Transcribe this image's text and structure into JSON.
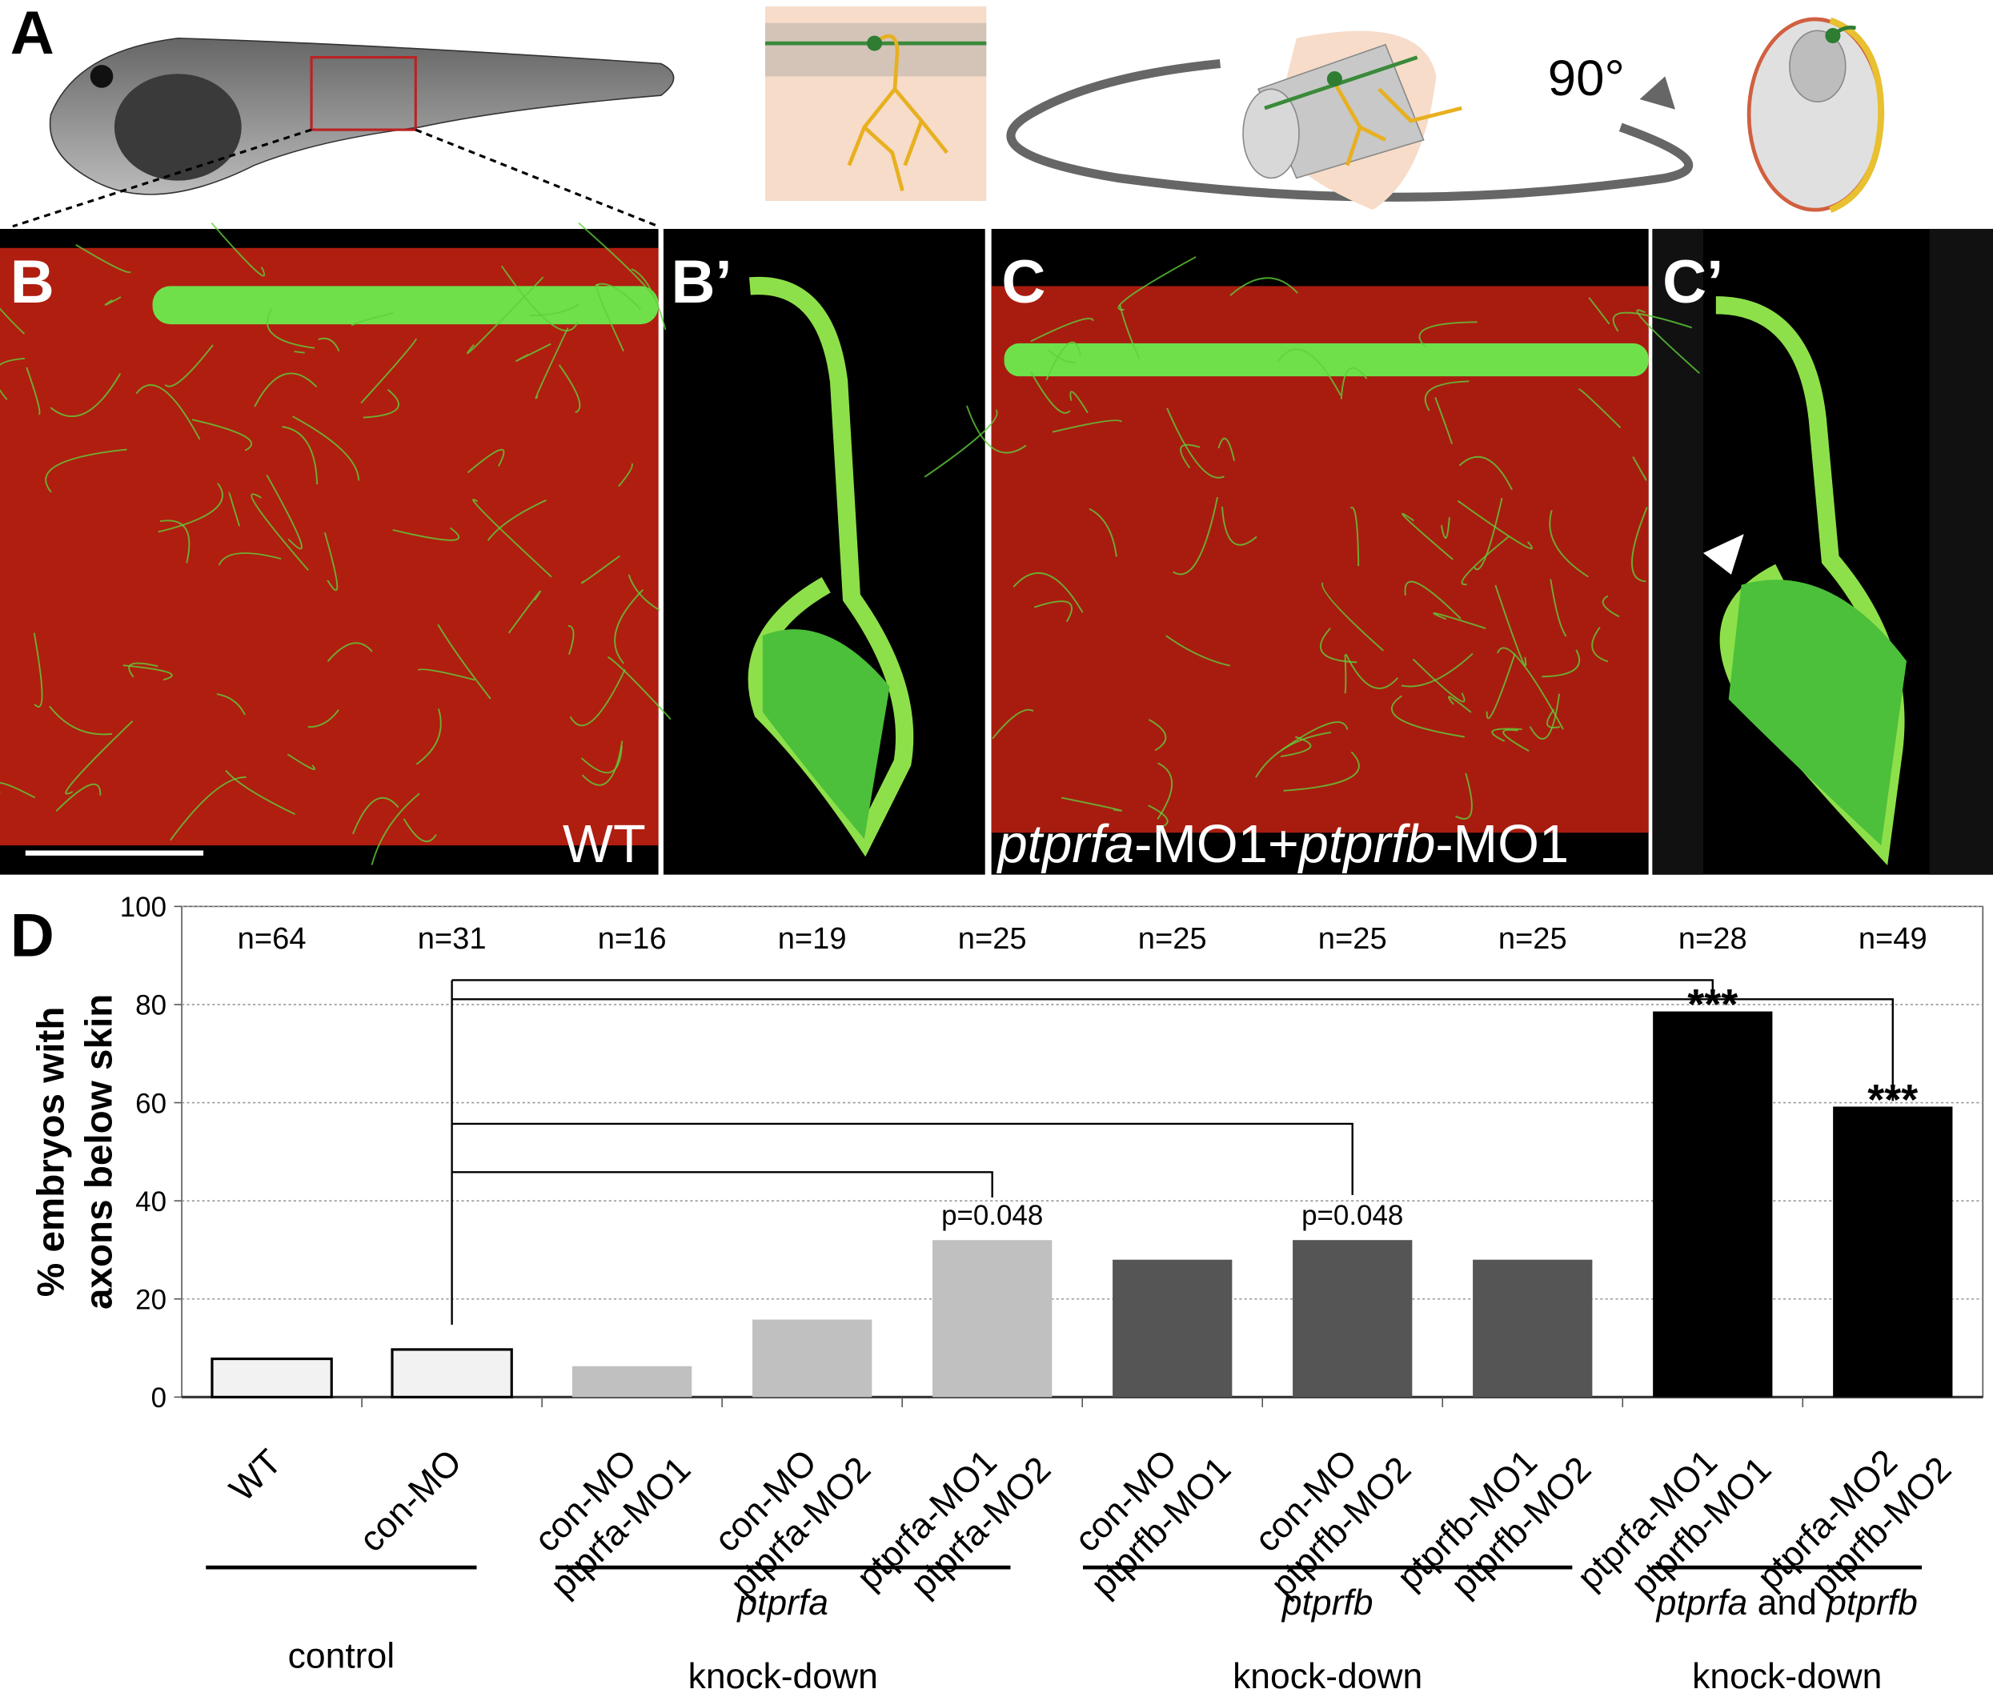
{
  "panels": {
    "a": "A",
    "b": "B",
    "b_prime": "B’",
    "c": "C",
    "c_prime": "C’",
    "rotation": "90°",
    "wt_label": "WT",
    "c_label": {
      "gene_a": "ptprfa",
      "mo_a": "-MO1+",
      "gene_b": "ptprfb",
      "mo_b": "-MO1"
    }
  },
  "chart_data": {
    "type": "bar",
    "panel_label": "D",
    "ylabel": [
      "% embryos with",
      "axons below skin"
    ],
    "categories": [
      [
        "WT"
      ],
      [
        "con-MO"
      ],
      [
        "con-MO",
        "ptprfa-MO1"
      ],
      [
        "con-MO",
        "ptprfa-MO2"
      ],
      [
        "ptprfa-MO1",
        "ptprfa-MO2"
      ],
      [
        "con-MO",
        "ptprfb-MO1"
      ],
      [
        "con-MO",
        "ptprfb-MO2"
      ],
      [
        "ptprfb-MO1",
        "ptprfb-MO2"
      ],
      [
        "ptprfa-MO1",
        "ptprfb-MO1"
      ],
      [
        "ptprfa-MO2",
        "ptprfb-MO2"
      ]
    ],
    "values": [
      7.8,
      9.7,
      6.3,
      15.8,
      32,
      28,
      32,
      28,
      78.6,
      59.2
    ],
    "colors": [
      "#f2f2f2",
      "#f2f2f2",
      "#c0c0c0",
      "#c0c0c0",
      "#c0c0c0",
      "#555555",
      "#555555",
      "#555555",
      "#000000",
      "#000000"
    ],
    "n_labels": [
      "n=64",
      "n=31",
      "n=16",
      "n=19",
      "n=25",
      "n=25",
      "n=25",
      "n=25",
      "n=28",
      "n=49"
    ],
    "significance": [
      null,
      null,
      null,
      null,
      "p=0.048",
      null,
      "p=0.048",
      null,
      "***",
      "***"
    ],
    "groups": [
      {
        "text": "control"
      },
      {
        "gene": "ptprfa",
        "text": "knock-down"
      },
      {
        "gene": "ptprfb",
        "text": "knock-down"
      },
      {
        "gene": "ptprfa",
        "joiner": " and ",
        "gene2": "ptprfb",
        "text": "knock-down"
      }
    ],
    "ylim": [
      0,
      100
    ],
    "yticks": [
      0,
      20,
      40,
      60,
      80,
      100
    ],
    "grid": true
  }
}
